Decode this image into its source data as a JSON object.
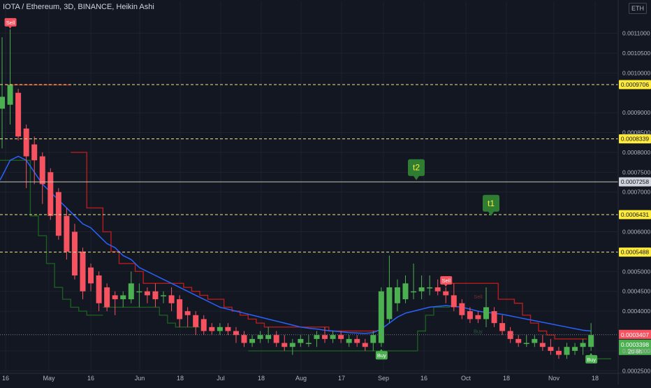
{
  "header": {
    "symbol_line": "IOTA / Ethereum, 3D, BINANCE, Heikin Ashi",
    "currency": "ETH"
  },
  "colors": {
    "background": "#131722",
    "grid": "#1e222d",
    "up": "#26a69a",
    "up_candle": "#4caf50",
    "down_candle": "#f7525f",
    "ma_line": "#2962ff",
    "stop_line_red": "#b71c1c",
    "stop_line_green": "#1b5e20",
    "level_line": "#f0e68c",
    "label_yellow": "#ffeb3b",
    "sell_label": "#f7525f",
    "buy_label": "#4caf50",
    "target_label": "#2e7d32"
  },
  "chart_data": {
    "type": "candlestick",
    "title": "IOTA / Ethereum, 3D, BINANCE, Heikin Ashi",
    "y_scale": "linear",
    "ylim": [
      0.000247,
      0.001145
    ],
    "x_tick_labels": [
      "16",
      "May",
      "16",
      "Jun",
      "18",
      "Jul",
      "18",
      "Aug",
      "17",
      "Sep",
      "16",
      "Oct",
      "18",
      "Nov",
      "18"
    ],
    "y_tick_labels": [
      "0.0011000",
      "0.0010500",
      "0.0010000",
      "0.0009000",
      "0.0008500",
      "0.0008000",
      "0.0007500",
      "0.0007000",
      "0.0006000",
      "0.0005000",
      "0.0004500",
      "0.0004000",
      "0.0003000",
      "0.0002500"
    ],
    "y_tick_values": [
      0.0011,
      0.00105,
      0.001,
      0.0009,
      0.00085,
      0.0008,
      0.00075,
      0.0007,
      0.0006,
      0.0005,
      0.00045,
      0.0004,
      0.0003,
      0.00025
    ],
    "price_levels": [
      {
        "value": 0.0009706,
        "label": "0.0009706",
        "style": "dashed"
      },
      {
        "value": 0.0008339,
        "label": "0.0008339",
        "style": "dashed"
      },
      {
        "value": 0.0007258,
        "label": "0.0007258",
        "style": "solid"
      },
      {
        "value": 0.0006431,
        "label": "0.0006431",
        "style": "dashed"
      },
      {
        "value": 0.0005488,
        "label": "0.0005488",
        "style": "dashed"
      }
    ],
    "current_price": {
      "value": 0.0003407,
      "label": "0.0003407"
    },
    "ha_close": {
      "value": 0.0003398,
      "label": "0.0003398",
      "countdown": "2d 6h"
    },
    "targets": [
      {
        "label": "t2",
        "value": 0.00073
      },
      {
        "label": "t1",
        "value": 0.00064
      }
    ],
    "signals": [
      {
        "type": "Sell",
        "index": 1
      },
      {
        "type": "Sell",
        "index": 55
      },
      {
        "type": "Buy",
        "index": 47
      },
      {
        "type": "Buy",
        "index": 73
      }
    ],
    "faded_signals": [
      {
        "text": "Sell",
        "index": 59
      },
      {
        "text": "Buy",
        "index": 59
      }
    ],
    "candles": [
      {
        "o": 0.00091,
        "h": 0.00109,
        "l": 0.00081,
        "c": 0.00094
      },
      {
        "o": 0.00092,
        "h": 0.00111,
        "l": 0.00087,
        "c": 0.00097
      },
      {
        "o": 0.00095,
        "h": 0.00096,
        "l": 0.00083,
        "c": 0.00084
      },
      {
        "o": 0.00086,
        "h": 0.00087,
        "l": 0.00071,
        "c": 0.00079
      },
      {
        "o": 0.00082,
        "h": 0.00084,
        "l": 0.00072,
        "c": 0.00078
      },
      {
        "o": 0.00079,
        "h": 0.0008,
        "l": 0.00067,
        "c": 0.00072
      },
      {
        "o": 0.00075,
        "h": 0.00076,
        "l": 0.00063,
        "c": 0.00064
      },
      {
        "o": 0.0007,
        "h": 0.00071,
        "l": 0.00058,
        "c": 0.00059
      },
      {
        "o": 0.00064,
        "h": 0.00066,
        "l": 0.00053,
        "c": 0.00055
      },
      {
        "o": 0.0006,
        "h": 0.00062,
        "l": 0.00048,
        "c": 0.00049
      },
      {
        "o": 0.00055,
        "h": 0.00056,
        "l": 0.00043,
        "c": 0.00045
      },
      {
        "o": 0.00051,
        "h": 0.00052,
        "l": 0.00045,
        "c": 0.00047
      },
      {
        "o": 0.00049,
        "h": 0.0005,
        "l": 0.0004,
        "c": 0.00042
      },
      {
        "o": 0.00046,
        "h": 0.00047,
        "l": 0.0004,
        "c": 0.00041
      },
      {
        "o": 0.00044,
        "h": 0.00045,
        "l": 0.00039,
        "c": 0.00043
      },
      {
        "o": 0.00043,
        "h": 0.00045,
        "l": 0.00041,
        "c": 0.00044
      },
      {
        "o": 0.00043,
        "h": 0.0005,
        "l": 0.00042,
        "c": 0.00047
      },
      {
        "o": 0.00045,
        "h": 0.00047,
        "l": 0.00041,
        "c": 0.00045
      },
      {
        "o": 0.00045,
        "h": 0.00046,
        "l": 0.00042,
        "c": 0.00044
      },
      {
        "o": 0.00045,
        "h": 0.00047,
        "l": 0.00041,
        "c": 0.00043
      },
      {
        "o": 0.00044,
        "h": 0.00045,
        "l": 0.00042,
        "c": 0.00044
      },
      {
        "o": 0.00044,
        "h": 0.00046,
        "l": 0.0004,
        "c": 0.00042
      },
      {
        "o": 0.00043,
        "h": 0.00044,
        "l": 0.00036,
        "c": 0.00038
      },
      {
        "o": 0.0004,
        "h": 0.00041,
        "l": 0.00036,
        "c": 0.00039
      },
      {
        "o": 0.00039,
        "h": 0.0004,
        "l": 0.00034,
        "c": 0.00036
      },
      {
        "o": 0.00038,
        "h": 0.00039,
        "l": 0.00034,
        "c": 0.00035
      },
      {
        "o": 0.00036,
        "h": 0.00037,
        "l": 0.00034,
        "c": 0.00035
      },
      {
        "o": 0.00035,
        "h": 0.00037,
        "l": 0.00034,
        "c": 0.00036
      },
      {
        "o": 0.00036,
        "h": 0.00037,
        "l": 0.00034,
        "c": 0.00035
      },
      {
        "o": 0.00035,
        "h": 0.00036,
        "l": 0.00032,
        "c": 0.00034
      },
      {
        "o": 0.00034,
        "h": 0.00035,
        "l": 0.00031,
        "c": 0.00032
      },
      {
        "o": 0.00032,
        "h": 0.00034,
        "l": 0.00031,
        "c": 0.00033
      },
      {
        "o": 0.00033,
        "h": 0.00035,
        "l": 0.00032,
        "c": 0.00034
      },
      {
        "o": 0.00033,
        "h": 0.00036,
        "l": 0.00032,
        "c": 0.00034
      },
      {
        "o": 0.00034,
        "h": 0.00035,
        "l": 0.00031,
        "c": 0.00032
      },
      {
        "o": 0.00032,
        "h": 0.00034,
        "l": 0.0003,
        "c": 0.00031
      },
      {
        "o": 0.00031,
        "h": 0.00033,
        "l": 0.00029,
        "c": 0.00032
      },
      {
        "o": 0.00032,
        "h": 0.00034,
        "l": 0.00031,
        "c": 0.00033
      },
      {
        "o": 0.00032,
        "h": 0.00034,
        "l": 0.00031,
        "c": 0.00032
      },
      {
        "o": 0.00033,
        "h": 0.00035,
        "l": 0.00031,
        "c": 0.00034
      },
      {
        "o": 0.00034,
        "h": 0.00036,
        "l": 0.00032,
        "c": 0.00033
      },
      {
        "o": 0.00033,
        "h": 0.00035,
        "l": 0.00032,
        "c": 0.00034
      },
      {
        "o": 0.00034,
        "h": 0.00035,
        "l": 0.00032,
        "c": 0.00033
      },
      {
        "o": 0.00032,
        "h": 0.00034,
        "l": 0.00031,
        "c": 0.00033
      },
      {
        "o": 0.00033,
        "h": 0.00034,
        "l": 0.00031,
        "c": 0.00032
      },
      {
        "o": 0.00032,
        "h": 0.00033,
        "l": 0.0003,
        "c": 0.00031
      },
      {
        "o": 0.00032,
        "h": 0.00035,
        "l": 0.0003,
        "c": 0.00034
      },
      {
        "o": 0.00032,
        "h": 0.00046,
        "l": 0.00031,
        "c": 0.00045
      },
      {
        "o": 0.00038,
        "h": 0.00054,
        "l": 0.00037,
        "c": 0.00046
      },
      {
        "o": 0.00042,
        "h": 0.00048,
        "l": 0.0004,
        "c": 0.00046
      },
      {
        "o": 0.00043,
        "h": 0.00049,
        "l": 0.00042,
        "c": 0.00047
      },
      {
        "o": 0.00045,
        "h": 0.00052,
        "l": 0.00043,
        "c": 0.00045
      },
      {
        "o": 0.00045,
        "h": 0.00049,
        "l": 0.00043,
        "c": 0.00046
      },
      {
        "o": 0.00046,
        "h": 0.00049,
        "l": 0.00044,
        "c": 0.00046
      },
      {
        "o": 0.00046,
        "h": 0.00048,
        "l": 0.00044,
        "c": 0.00045
      },
      {
        "o": 0.00045,
        "h": 0.00046,
        "l": 0.00042,
        "c": 0.00044
      },
      {
        "o": 0.00044,
        "h": 0.00047,
        "l": 0.0004,
        "c": 0.00041
      },
      {
        "o": 0.00042,
        "h": 0.00043,
        "l": 0.00038,
        "c": 0.00039
      },
      {
        "o": 0.0004,
        "h": 0.00041,
        "l": 0.00037,
        "c": 0.00038
      },
      {
        "o": 0.00039,
        "h": 0.0004,
        "l": 0.00037,
        "c": 0.00038
      },
      {
        "o": 0.00038,
        "h": 0.00046,
        "l": 0.00036,
        "c": 0.00041
      },
      {
        "o": 0.0004,
        "h": 0.00041,
        "l": 0.00036,
        "c": 0.00037
      },
      {
        "o": 0.00037,
        "h": 0.00039,
        "l": 0.00034,
        "c": 0.00035
      },
      {
        "o": 0.00035,
        "h": 0.00036,
        "l": 0.00032,
        "c": 0.00033
      },
      {
        "o": 0.00033,
        "h": 0.00034,
        "l": 0.00031,
        "c": 0.00032
      },
      {
        "o": 0.00032,
        "h": 0.00034,
        "l": 0.00031,
        "c": 0.00032
      },
      {
        "o": 0.00032,
        "h": 0.00034,
        "l": 0.00031,
        "c": 0.00033
      },
      {
        "o": 0.00032,
        "h": 0.00034,
        "l": 0.0003,
        "c": 0.00031
      },
      {
        "o": 0.00031,
        "h": 0.00033,
        "l": 0.00029,
        "c": 0.0003
      },
      {
        "o": 0.0003,
        "h": 0.00031,
        "l": 0.00028,
        "c": 0.00029
      },
      {
        "o": 0.00029,
        "h": 0.00032,
        "l": 0.00028,
        "c": 0.00031
      },
      {
        "o": 0.0003,
        "h": 0.00032,
        "l": 0.00029,
        "c": 0.00031
      },
      {
        "o": 0.00031,
        "h": 0.00033,
        "l": 0.00029,
        "c": 0.00032
      },
      {
        "o": 0.00031,
        "h": 0.00037,
        "l": 0.0003,
        "c": 0.00034
      }
    ],
    "ma_line": [
      0.00074,
      0.00078,
      0.00079,
      0.00078,
      0.00075,
      0.00072,
      0.0007,
      0.00068,
      0.00066,
      0.00064,
      0.00062,
      0.00061,
      0.00059,
      0.00057,
      0.00056,
      0.00054,
      0.00053,
      0.00051,
      0.0005,
      0.00049,
      0.00048,
      0.00047,
      0.00046,
      0.00045,
      0.00044,
      0.00043,
      0.00042,
      0.00041,
      0.000405,
      0.0004,
      0.000395,
      0.00039,
      0.000385,
      0.00038,
      0.000375,
      0.00037,
      0.000365,
      0.00036,
      0.000357,
      0.000355,
      0.000352,
      0.00035,
      0.000348,
      0.000346,
      0.000345,
      0.000344,
      0.000346,
      0.000355,
      0.00037,
      0.000385,
      0.000395,
      0.0004,
      0.000405,
      0.00041,
      0.000412,
      0.000414,
      0.000412,
      0.00041,
      0.000405,
      0.0004,
      0.000397,
      0.000395,
      0.000392,
      0.000388,
      0.000384,
      0.00038,
      0.000376,
      0.000372,
      0.000368,
      0.000364,
      0.00036,
      0.000356,
      0.000352,
      0.00035
    ],
    "stop_line": {
      "red_segments": [
        {
          "from": 1,
          "to": 8,
          "values": [
            0.00097,
            0.00097,
            0.00097,
            0.00097,
            0.00097,
            0.00097,
            0.00097,
            0.00097
          ]
        },
        {
          "from": 9,
          "to": 46,
          "values": [
            0.0008,
            0.0008,
            0.00066,
            0.00066,
            0.0006,
            0.00055,
            0.00052,
            0.00052,
            0.0005,
            0.00047,
            0.00047,
            0.00047,
            0.00047,
            0.00047,
            0.00046,
            0.00045,
            0.00044,
            0.00043,
            0.00043,
            0.00041,
            0.0004,
            0.00039,
            0.00038,
            0.00037,
            0.00036,
            0.00036,
            0.00036,
            0.00036,
            0.00036,
            0.00036,
            0.00036,
            0.00036,
            0.00035,
            0.00035,
            0.00035,
            0.00035,
            0.00035,
            0.00035
          ]
        },
        {
          "from": 55,
          "to": 72,
          "values": [
            0.00047,
            0.00047,
            0.00047,
            0.00047,
            0.00047,
            0.00047,
            0.00047,
            0.00043,
            0.00043,
            0.00042,
            0.00039,
            0.00037,
            0.00035,
            0.00034,
            0.00033,
            0.00033,
            0.00033,
            0.00033
          ]
        }
      ],
      "green_segments": [
        {
          "from": 0,
          "to": 1,
          "values": [
            0.00078,
            0.00078
          ]
        },
        {
          "from": 2,
          "to": 12,
          "values": [
            0.00078,
            0.00078,
            0.00064,
            0.00059,
            0.00052,
            0.00046,
            0.00043,
            0.00041,
            0.0004,
            0.00039,
            0.00039
          ]
        },
        {
          "from": 13,
          "to": 24,
          "values": [
            0.00041,
            0.00041,
            0.00041,
            0.00041,
            0.00041,
            0.00041,
            0.00041,
            0.00039,
            0.00037,
            0.00036,
            0.00036,
            0.00036
          ]
        },
        {
          "from": 31,
          "to": 47,
          "values": [
            0.0003,
            0.0003,
            0.0003,
            0.0003,
            0.0003,
            0.0003,
            0.0003,
            0.0003,
            0.0003,
            0.0003,
            0.0003,
            0.0003,
            0.0003,
            0.0003,
            0.0003,
            0.0003,
            0.0003
          ]
        },
        {
          "from": 47,
          "to": 55,
          "values": [
            0.0003,
            0.0003,
            0.0003,
            0.0003,
            0.0003,
            0.00035,
            0.00039,
            0.00041,
            0.00041
          ]
        },
        {
          "from": 73,
          "to": 75,
          "values": [
            0.00028,
            0.00028,
            0.00028
          ]
        }
      ]
    }
  }
}
